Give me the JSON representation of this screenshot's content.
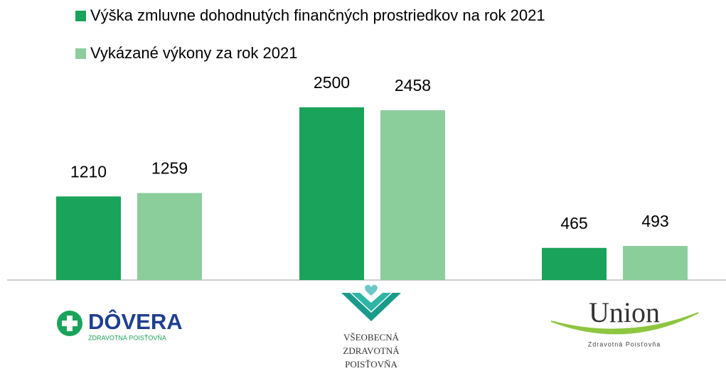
{
  "chart_data": {
    "type": "bar",
    "categories": [
      [
        "DÔVERA",
        "ZDRAVOTNÁ POISŤOVŇA"
      ],
      [
        "VŠEOBECNÁ",
        "ZDRAVOTNÁ",
        "POISŤOVŇA"
      ],
      [
        "Union",
        "Zdravotná Poisťovňa"
      ]
    ],
    "series": [
      {
        "name": "Výška zmluvne dohodnutých finančných prostriedkov na rok 2021",
        "color": "#1aa35a",
        "values": [
          1210,
          2500,
          465
        ]
      },
      {
        "name": "Vykázané výkony za rok 2021",
        "color": "#8ccd9c",
        "values": [
          1259,
          2458,
          493
        ]
      }
    ],
    "legend": "top-left"
  }
}
